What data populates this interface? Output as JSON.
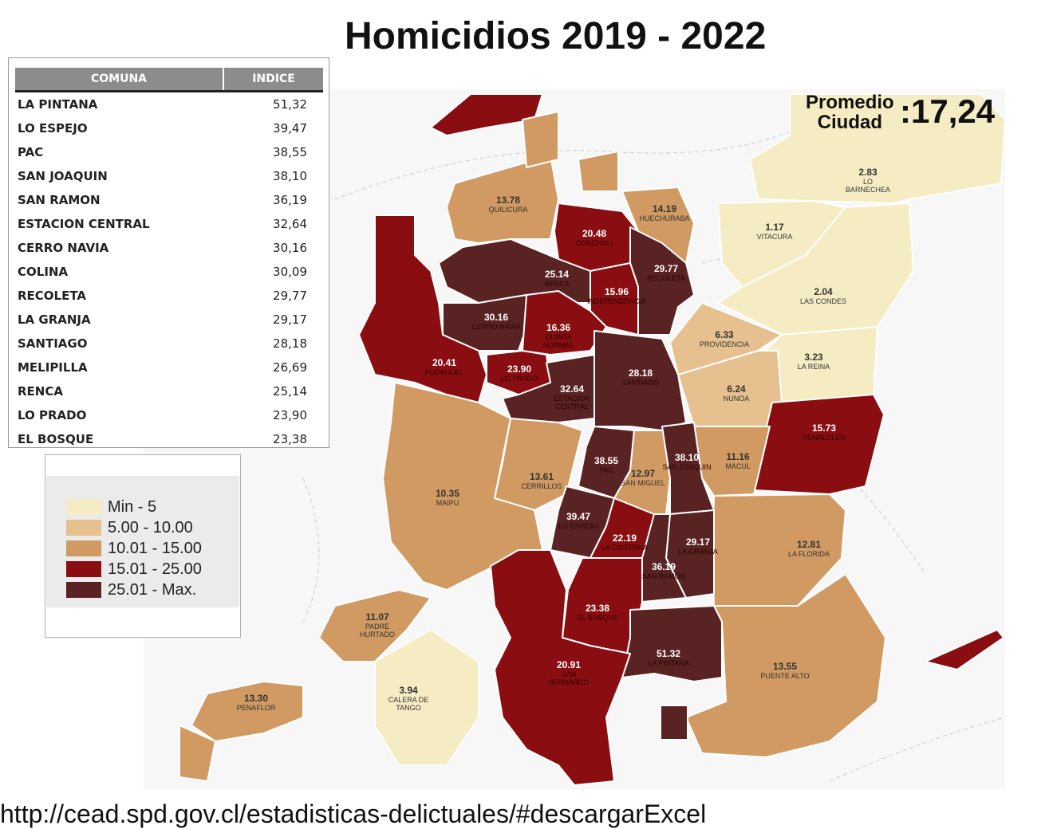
{
  "title": "Homicidios 2019 - 2022",
  "average": {
    "label_line1": "Promedio",
    "label_line2": "Ciudad",
    "value": ":17,24"
  },
  "ranking": {
    "headers": {
      "comuna": "COMUNA",
      "indice": "INDICE"
    },
    "rows": [
      {
        "comuna": "LA PINTANA",
        "indice": "51,32"
      },
      {
        "comuna": "LO ESPEJO",
        "indice": "39,47"
      },
      {
        "comuna": "PAC",
        "indice": "38,55"
      },
      {
        "comuna": "SAN JOAQUIN",
        "indice": "38,10"
      },
      {
        "comuna": "SAN RAMON",
        "indice": "36,19"
      },
      {
        "comuna": "ESTACION CENTRAL",
        "indice": "32,64"
      },
      {
        "comuna": "CERRO NAVIA",
        "indice": "30,16"
      },
      {
        "comuna": "COLINA",
        "indice": "30,09"
      },
      {
        "comuna": "RECOLETA",
        "indice": "29,77"
      },
      {
        "comuna": "LA GRANJA",
        "indice": "29,17"
      },
      {
        "comuna": "SANTIAGO",
        "indice": "28,18"
      },
      {
        "comuna": "MELIPILLA",
        "indice": "26,69"
      },
      {
        "comuna": "RENCA",
        "indice": "25,14"
      },
      {
        "comuna": "LO PRADO",
        "indice": "23,90"
      },
      {
        "comuna": "EL BOSQUE",
        "indice": "23,38"
      }
    ]
  },
  "legend": [
    {
      "label": "Min - 5",
      "color": "#f6ecc4"
    },
    {
      "label": "5.00 - 10.00",
      "color": "#e6c08e"
    },
    {
      "label": "10.01 - 15.00",
      "color": "#d09a62"
    },
    {
      "label": "15.01 - 25.00",
      "color": "#8a0d11"
    },
    {
      "label": "25.01 - Max.",
      "color": "#5a2323"
    }
  ],
  "comunas": [
    {
      "name": "QUILICURA",
      "value": "13.78",
      "cls": "c3"
    },
    {
      "name": "HUECHURABA",
      "value": "14.19",
      "cls": "c3"
    },
    {
      "name": "CONCHALI",
      "value": "20.48",
      "cls": "c4"
    },
    {
      "name": "RECOLETA",
      "value": "29.77",
      "cls": "c5"
    },
    {
      "name": "RENCA",
      "value": "25.14",
      "cls": "c5"
    },
    {
      "name": "INDEPENDENCIA",
      "value": "15.96",
      "cls": "c4"
    },
    {
      "name": "CERRO NAVIA",
      "value": "30.16",
      "cls": "c5"
    },
    {
      "name": "QUINTA NORMAL",
      "value": "16.36",
      "cls": "c4"
    },
    {
      "name": "PUDAHUEL",
      "value": "20.41",
      "cls": "c4"
    },
    {
      "name": "LO PRADO",
      "value": "23.90",
      "cls": "c4"
    },
    {
      "name": "ESTACION CENTRAL",
      "value": "32.64",
      "cls": "c5"
    },
    {
      "name": "SANTIAGO",
      "value": "28.18",
      "cls": "c5"
    },
    {
      "name": "LO BARNECHEA",
      "value": "2.83",
      "cls": "c1"
    },
    {
      "name": "VITACURA",
      "value": "1.17",
      "cls": "c1"
    },
    {
      "name": "LAS CONDES",
      "value": "2.04",
      "cls": "c1"
    },
    {
      "name": "PROVIDENCIA",
      "value": "6.33",
      "cls": "c2"
    },
    {
      "name": "LA REINA",
      "value": "3.23",
      "cls": "c1"
    },
    {
      "name": "NUNOA",
      "value": "6.24",
      "cls": "c2"
    },
    {
      "name": "PENALOLEN",
      "value": "15.73",
      "cls": "c4"
    },
    {
      "name": "MACUL",
      "value": "11.16",
      "cls": "c3"
    },
    {
      "name": "SAN JOAQUIN",
      "value": "38.10",
      "cls": "c5"
    },
    {
      "name": "SAN MIGUEL",
      "value": "12.97",
      "cls": "c3"
    },
    {
      "name": "PAC",
      "value": "38.55",
      "cls": "c5"
    },
    {
      "name": "CERRILLOS",
      "value": "13.61",
      "cls": "c3"
    },
    {
      "name": "MAIPU",
      "value": "10.35",
      "cls": "c3"
    },
    {
      "name": "LO ESPEJO",
      "value": "39.47",
      "cls": "c5"
    },
    {
      "name": "LA CISTERNA",
      "value": "22.19",
      "cls": "c4"
    },
    {
      "name": "LA GRANJA",
      "value": "29.17",
      "cls": "c5"
    },
    {
      "name": "SAN RAMON",
      "value": "36.19",
      "cls": "c5"
    },
    {
      "name": "LA FLORIDA",
      "value": "12.81",
      "cls": "c3"
    },
    {
      "name": "EL BOSQUE",
      "value": "23.38",
      "cls": "c4"
    },
    {
      "name": "PADRE HURTADO",
      "value": "11.07",
      "cls": "c3"
    },
    {
      "name": "LA PINTANA",
      "value": "51.32",
      "cls": "c5"
    },
    {
      "name": "PUENTE ALTO",
      "value": "13.55",
      "cls": "c3"
    },
    {
      "name": "SAN BERNARDO",
      "value": "20.91",
      "cls": "c4"
    },
    {
      "name": "PENAFLOR",
      "value": "13.30",
      "cls": "c3"
    },
    {
      "name": "CALERA DE TANGO",
      "value": "3.94",
      "cls": "c1"
    }
  ],
  "source_url": "http://cead.spd.gov.cl/estadisticas-delictuales/#descargarExcel"
}
